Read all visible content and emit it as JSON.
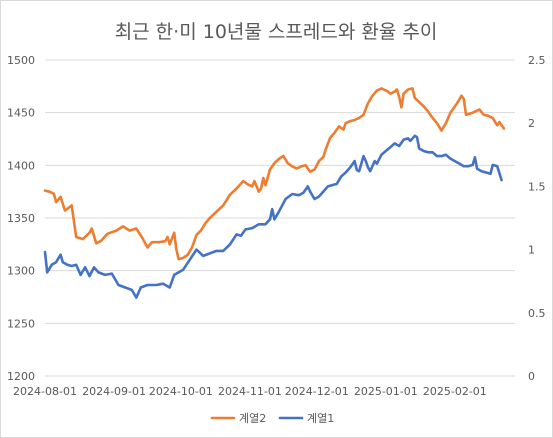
{
  "chart_data": {
    "type": "line",
    "title": "최근 한·미 10년물 스프레드와 환율 추이",
    "x_tick_labels": [
      "2024-08-01",
      "2024-09-01",
      "2024-10-01",
      "2024-11-01",
      "2024-12-01",
      "2025-01-01",
      "2025-02-01"
    ],
    "x_range": [
      "2024-08-01",
      "2025-02-28"
    ],
    "y_left": {
      "range": [
        1200,
        1500
      ],
      "ticks": [
        "1200",
        "1250",
        "1300",
        "1350",
        "1400",
        "1450",
        "1500"
      ]
    },
    "y_right": {
      "range": [
        0,
        2.5
      ],
      "ticks": [
        "0",
        "0.5",
        "1",
        "1.5",
        "2",
        "2.5"
      ]
    },
    "grid": true,
    "legend_position": "bottom",
    "series": [
      {
        "name": "계열2",
        "axis": "left",
        "color": "#ED7D31",
        "points": [
          [
            "2024-08-01",
            1376
          ],
          [
            "2024-08-03",
            1375
          ],
          [
            "2024-08-05",
            1373
          ],
          [
            "2024-08-06",
            1365
          ],
          [
            "2024-08-08",
            1370
          ],
          [
            "2024-08-10",
            1357
          ],
          [
            "2024-08-13",
            1362
          ],
          [
            "2024-08-15",
            1332
          ],
          [
            "2024-08-18",
            1330
          ],
          [
            "2024-08-21",
            1336
          ],
          [
            "2024-08-22",
            1340
          ],
          [
            "2024-08-24",
            1326
          ],
          [
            "2024-08-26",
            1328
          ],
          [
            "2024-08-29",
            1335
          ],
          [
            "2024-09-02",
            1338
          ],
          [
            "2024-09-05",
            1342
          ],
          [
            "2024-09-08",
            1338
          ],
          [
            "2024-09-11",
            1340
          ],
          [
            "2024-09-14",
            1330
          ],
          [
            "2024-09-16",
            1322
          ],
          [
            "2024-09-18",
            1327
          ],
          [
            "2024-09-21",
            1327
          ],
          [
            "2024-09-24",
            1328
          ],
          [
            "2024-09-25",
            1332
          ],
          [
            "2024-09-26",
            1325
          ],
          [
            "2024-09-28",
            1336
          ],
          [
            "2024-09-29",
            1320
          ],
          [
            "2024-09-30",
            1311
          ],
          [
            "2024-10-02",
            1312
          ],
          [
            "2024-10-04",
            1315
          ],
          [
            "2024-10-06",
            1322
          ],
          [
            "2024-10-08",
            1334
          ],
          [
            "2024-10-10",
            1338
          ],
          [
            "2024-10-12",
            1345
          ],
          [
            "2024-10-14",
            1350
          ],
          [
            "2024-10-17",
            1356
          ],
          [
            "2024-10-20",
            1362
          ],
          [
            "2024-10-23",
            1372
          ],
          [
            "2024-10-26",
            1378
          ],
          [
            "2024-10-29",
            1385
          ],
          [
            "2024-10-31",
            1382
          ],
          [
            "2024-11-02",
            1380
          ],
          [
            "2024-11-03",
            1385
          ],
          [
            "2024-11-04",
            1380
          ],
          [
            "2024-11-05",
            1375
          ],
          [
            "2024-11-06",
            1378
          ],
          [
            "2024-11-07",
            1388
          ],
          [
            "2024-11-08",
            1381
          ],
          [
            "2024-11-10",
            1396
          ],
          [
            "2024-11-12",
            1402
          ],
          [
            "2024-11-14",
            1406
          ],
          [
            "2024-11-16",
            1409
          ],
          [
            "2024-11-18",
            1402
          ],
          [
            "2024-11-20",
            1399
          ],
          [
            "2024-11-22",
            1397
          ],
          [
            "2024-11-24",
            1399
          ],
          [
            "2024-11-26",
            1400
          ],
          [
            "2024-11-28",
            1394
          ],
          [
            "2024-11-30",
            1396
          ],
          [
            "2024-12-02",
            1404
          ],
          [
            "2024-12-04",
            1408
          ],
          [
            "2024-12-05",
            1415
          ],
          [
            "2024-12-07",
            1426
          ],
          [
            "2024-12-09",
            1431
          ],
          [
            "2024-12-11",
            1437
          ],
          [
            "2024-12-13",
            1434
          ],
          [
            "2024-12-14",
            1440
          ],
          [
            "2024-12-16",
            1442
          ],
          [
            "2024-12-18",
            1443
          ],
          [
            "2024-12-20",
            1445
          ],
          [
            "2024-12-22",
            1448
          ],
          [
            "2024-12-24",
            1459
          ],
          [
            "2024-12-26",
            1466
          ],
          [
            "2024-12-28",
            1471
          ],
          [
            "2024-12-30",
            1473
          ],
          [
            "2025-01-02",
            1470
          ],
          [
            "2025-01-03",
            1468
          ],
          [
            "2025-01-05",
            1470
          ],
          [
            "2025-01-06",
            1472
          ],
          [
            "2025-01-07",
            1465
          ],
          [
            "2025-01-08",
            1455
          ],
          [
            "2025-01-09",
            1468
          ],
          [
            "2025-01-11",
            1472
          ],
          [
            "2025-01-13",
            1473
          ],
          [
            "2025-01-14",
            1464
          ],
          [
            "2025-01-16",
            1460
          ],
          [
            "2025-01-18",
            1456
          ],
          [
            "2025-01-20",
            1451
          ],
          [
            "2025-01-22",
            1445
          ],
          [
            "2025-01-24",
            1440
          ],
          [
            "2025-01-26",
            1433
          ],
          [
            "2025-01-28",
            1440
          ],
          [
            "2025-01-30",
            1450
          ],
          [
            "2025-02-02",
            1459
          ],
          [
            "2025-02-04",
            1466
          ],
          [
            "2025-02-05",
            1463
          ],
          [
            "2025-02-06",
            1448
          ],
          [
            "2025-02-09",
            1450
          ],
          [
            "2025-02-12",
            1453
          ],
          [
            "2025-02-14",
            1448
          ],
          [
            "2025-02-16",
            1447
          ],
          [
            "2025-02-18",
            1445
          ],
          [
            "2025-02-20",
            1438
          ],
          [
            "2025-02-21",
            1441
          ],
          [
            "2025-02-23",
            1435
          ]
        ]
      },
      {
        "name": "계열1",
        "axis": "right",
        "color": "#4472C4",
        "points": [
          [
            "2024-08-01",
            0.98
          ],
          [
            "2024-08-02",
            0.82
          ],
          [
            "2024-08-04",
            0.88
          ],
          [
            "2024-08-06",
            0.9
          ],
          [
            "2024-08-08",
            0.96
          ],
          [
            "2024-08-09",
            0.9
          ],
          [
            "2024-08-11",
            0.88
          ],
          [
            "2024-08-13",
            0.87
          ],
          [
            "2024-08-15",
            0.88
          ],
          [
            "2024-08-17",
            0.8
          ],
          [
            "2024-08-19",
            0.86
          ],
          [
            "2024-08-21",
            0.79
          ],
          [
            "2024-08-23",
            0.86
          ],
          [
            "2024-08-25",
            0.82
          ],
          [
            "2024-08-28",
            0.8
          ],
          [
            "2024-08-31",
            0.81
          ],
          [
            "2024-09-03",
            0.72
          ],
          [
            "2024-09-06",
            0.7
          ],
          [
            "2024-09-09",
            0.68
          ],
          [
            "2024-09-11",
            0.62
          ],
          [
            "2024-09-13",
            0.7
          ],
          [
            "2024-09-16",
            0.72
          ],
          [
            "2024-09-20",
            0.72
          ],
          [
            "2024-09-23",
            0.73
          ],
          [
            "2024-09-26",
            0.7
          ],
          [
            "2024-09-28",
            0.8
          ],
          [
            "2024-09-30",
            0.82
          ],
          [
            "2024-10-02",
            0.84
          ],
          [
            "2024-10-05",
            0.92
          ],
          [
            "2024-10-08",
            1.0
          ],
          [
            "2024-10-11",
            0.95
          ],
          [
            "2024-10-14",
            0.97
          ],
          [
            "2024-10-17",
            0.99
          ],
          [
            "2024-10-20",
            0.99
          ],
          [
            "2024-10-23",
            1.04
          ],
          [
            "2024-10-26",
            1.12
          ],
          [
            "2024-10-28",
            1.11
          ],
          [
            "2024-10-30",
            1.16
          ],
          [
            "2024-11-02",
            1.17
          ],
          [
            "2024-11-05",
            1.2
          ],
          [
            "2024-11-08",
            1.2
          ],
          [
            "2024-11-10",
            1.24
          ],
          [
            "2024-11-11",
            1.32
          ],
          [
            "2024-11-12",
            1.24
          ],
          [
            "2024-11-14",
            1.3
          ],
          [
            "2024-11-17",
            1.4
          ],
          [
            "2024-11-20",
            1.44
          ],
          [
            "2024-11-23",
            1.43
          ],
          [
            "2024-11-25",
            1.45
          ],
          [
            "2024-11-27",
            1.5
          ],
          [
            "2024-11-28",
            1.46
          ],
          [
            "2024-11-30",
            1.4
          ],
          [
            "2024-12-02",
            1.42
          ],
          [
            "2024-12-04",
            1.46
          ],
          [
            "2024-12-06",
            1.5
          ],
          [
            "2024-12-08",
            1.51
          ],
          [
            "2024-12-10",
            1.52
          ],
          [
            "2024-12-12",
            1.58
          ],
          [
            "2024-12-14",
            1.61
          ],
          [
            "2024-12-16",
            1.65
          ],
          [
            "2024-12-18",
            1.7
          ],
          [
            "2024-12-19",
            1.63
          ],
          [
            "2024-12-20",
            1.62
          ],
          [
            "2024-12-22",
            1.74
          ],
          [
            "2024-12-23",
            1.7
          ],
          [
            "2024-12-24",
            1.65
          ],
          [
            "2024-12-25",
            1.62
          ],
          [
            "2024-12-27",
            1.7
          ],
          [
            "2024-12-28",
            1.68
          ],
          [
            "2024-12-30",
            1.75
          ],
          [
            "2025-01-01",
            1.78
          ],
          [
            "2025-01-03",
            1.81
          ],
          [
            "2025-01-05",
            1.84
          ],
          [
            "2025-01-07",
            1.82
          ],
          [
            "2025-01-09",
            1.87
          ],
          [
            "2025-01-11",
            1.88
          ],
          [
            "2025-01-12",
            1.86
          ],
          [
            "2025-01-14",
            1.9
          ],
          [
            "2025-01-15",
            1.89
          ],
          [
            "2025-01-16",
            1.8
          ],
          [
            "2025-01-18",
            1.78
          ],
          [
            "2025-01-20",
            1.77
          ],
          [
            "2025-01-22",
            1.77
          ],
          [
            "2025-01-24",
            1.74
          ],
          [
            "2025-01-26",
            1.74
          ],
          [
            "2025-01-28",
            1.75
          ],
          [
            "2025-01-30",
            1.72
          ],
          [
            "2025-02-01",
            1.7
          ],
          [
            "2025-02-03",
            1.68
          ],
          [
            "2025-02-05",
            1.66
          ],
          [
            "2025-02-07",
            1.66
          ],
          [
            "2025-02-09",
            1.67
          ],
          [
            "2025-02-10",
            1.73
          ],
          [
            "2025-02-11",
            1.64
          ],
          [
            "2025-02-13",
            1.62
          ],
          [
            "2025-02-15",
            1.61
          ],
          [
            "2025-02-17",
            1.6
          ],
          [
            "2025-02-18",
            1.67
          ],
          [
            "2025-02-20",
            1.66
          ],
          [
            "2025-02-22",
            1.55
          ]
        ]
      }
    ]
  }
}
